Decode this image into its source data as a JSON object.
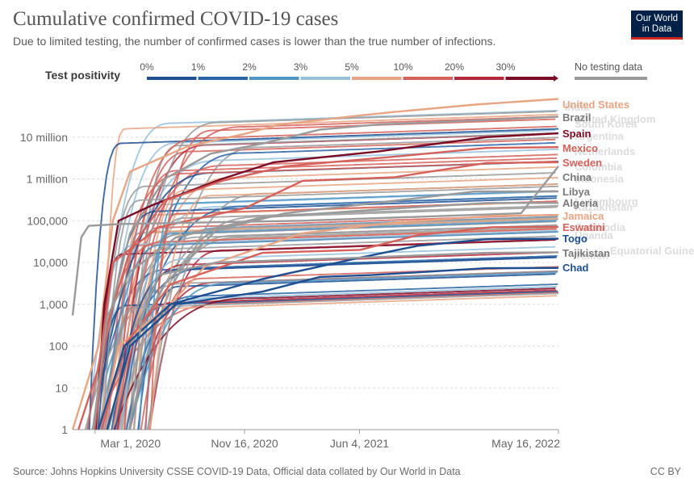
{
  "header": {
    "title": "Cumulative confirmed COVID-19 cases",
    "subtitle": "Due to limited testing, the number of confirmed cases is lower than the true number of infections.",
    "logo_line1": "Our World",
    "logo_line2": "in Data"
  },
  "footer": {
    "source": "Source: Johns Hopkins University CSSE COVID-19 Data, Official data collated by Our World in Data",
    "license": "CC BY"
  },
  "legend": {
    "title": "Test positivity",
    "bins": [
      {
        "label": "0%",
        "color": "#1d4f91"
      },
      {
        "label": "1%",
        "color": "#2b64a6"
      },
      {
        "label": "2%",
        "color": "#4f95c6"
      },
      {
        "label": "3%",
        "color": "#95c1dd"
      },
      {
        "label": "5%",
        "color": "#e8a583"
      },
      {
        "label": "10%",
        "color": "#d5615a"
      },
      {
        "label": "20%",
        "color": "#b5283c"
      },
      {
        "label": "30%",
        "color": "#7b0b26"
      }
    ],
    "no_data_label": "No testing data",
    "no_data_color": "#9a9a9a"
  },
  "chart_data": {
    "type": "line",
    "title": "Cumulative confirmed COVID-19 cases",
    "y_scale": "log",
    "ylim": [
      1,
      100000000
    ],
    "x_range": [
      "2020-01-22",
      "2022-05-16"
    ],
    "x_ticks": [
      {
        "label": "Mar 1, 2020",
        "day": 39
      },
      {
        "label": "Nov 16, 2020",
        "day": 299
      },
      {
        "label": "Jun 4, 2021",
        "day": 499
      },
      {
        "label": "May 16, 2022",
        "day": 845
      }
    ],
    "y_ticks": [
      {
        "label": "1",
        "value": 1
      },
      {
        "label": "10",
        "value": 10
      },
      {
        "label": "100",
        "value": 100
      },
      {
        "label": "1,000",
        "value": 1000
      },
      {
        "label": "10,000",
        "value": 10000
      },
      {
        "label": "100,000",
        "value": 100000
      },
      {
        "label": "1 million",
        "value": 1000000
      },
      {
        "label": "10 million",
        "value": 10000000
      }
    ],
    "series": [
      {
        "name": "United States",
        "color": "#e8a583",
        "start": 0,
        "pts": [
          [
            0,
            1
          ],
          [
            45,
            100
          ],
          [
            70,
            100000
          ],
          [
            100,
            1500000
          ],
          [
            200,
            6000000
          ],
          [
            300,
            12000000
          ],
          [
            360,
            20000000
          ],
          [
            500,
            33000000
          ],
          [
            560,
            40000000
          ],
          [
            700,
            60000000
          ],
          [
            845,
            82000000
          ]
        ]
      },
      {
        "name": "Brazil",
        "color": "#9a9a9a",
        "start": 30,
        "pts": [
          [
            35,
            1
          ],
          [
            60,
            300
          ],
          [
            100,
            50000
          ],
          [
            160,
            1000000
          ],
          [
            240,
            4000000
          ],
          [
            330,
            7000000
          ],
          [
            430,
            15000000
          ],
          [
            530,
            20000000
          ],
          [
            700,
            25000000
          ],
          [
            845,
            30700000
          ]
        ]
      },
      {
        "name": "Spain",
        "color": "#7b0b26",
        "start": 30,
        "pts": [
          [
            40,
            1
          ],
          [
            55,
            1000
          ],
          [
            80,
            100000
          ],
          [
            140,
            240000
          ],
          [
            260,
            1000000
          ],
          [
            350,
            2500000
          ],
          [
            530,
            4500000
          ],
          [
            720,
            10000000
          ],
          [
            845,
            12300000
          ]
        ]
      },
      {
        "name": "Mexico",
        "color": "#d5615a",
        "start": 35,
        "pts": [
          [
            38,
            1
          ],
          [
            60,
            300
          ],
          [
            100,
            20000
          ],
          [
            160,
            300000
          ],
          [
            260,
            900000
          ],
          [
            370,
            2000000
          ],
          [
            570,
            3500000
          ],
          [
            720,
            5500000
          ],
          [
            845,
            5750000
          ]
        ]
      },
      {
        "name": "Sweden",
        "color": "#d5615a",
        "start": 8,
        "pts": [
          [
            10,
            1
          ],
          [
            45,
            30
          ],
          [
            70,
            10000
          ],
          [
            150,
            70000
          ],
          [
            300,
            200000
          ],
          [
            400,
            900000
          ],
          [
            560,
            1100000
          ],
          [
            720,
            2400000
          ],
          [
            845,
            2500000
          ]
        ]
      },
      {
        "name": "China",
        "color": "#9a9a9a",
        "start": 0,
        "pts": [
          [
            0,
            540
          ],
          [
            15,
            40000
          ],
          [
            28,
            75000
          ],
          [
            80,
            83000
          ],
          [
            400,
            100000
          ],
          [
            780,
            150000
          ],
          [
            845,
            2000000
          ]
        ]
      },
      {
        "name": "Libya",
        "color": "#9a9a9a",
        "start": 60,
        "pts": [
          [
            62,
            1
          ],
          [
            100,
            100
          ],
          [
            160,
            3000
          ],
          [
            250,
            60000
          ],
          [
            370,
            150000
          ],
          [
            560,
            300000
          ],
          [
            700,
            500000
          ],
          [
            845,
            502000
          ]
        ]
      },
      {
        "name": "Algeria",
        "color": "#9a9a9a",
        "start": 35,
        "pts": [
          [
            36,
            1
          ],
          [
            60,
            500
          ],
          [
            100,
            6000
          ],
          [
            180,
            40000
          ],
          [
            330,
            120000
          ],
          [
            520,
            180000
          ],
          [
            720,
            265000
          ],
          [
            845,
            266000
          ]
        ]
      },
      {
        "name": "Jamaica",
        "color": "#e8a583",
        "start": 50,
        "pts": [
          [
            50,
            1
          ],
          [
            80,
            100
          ],
          [
            170,
            1000
          ],
          [
            230,
            8000
          ],
          [
            400,
            50000
          ],
          [
            560,
            90000
          ],
          [
            730,
            130000
          ],
          [
            845,
            137000
          ]
        ]
      },
      {
        "name": "Eswatini",
        "color": "#d5615a",
        "start": 50,
        "pts": [
          [
            50,
            1
          ],
          [
            90,
            100
          ],
          [
            170,
            3000
          ],
          [
            330,
            17000
          ],
          [
            500,
            20000
          ],
          [
            600,
            45000
          ],
          [
            730,
            70000
          ],
          [
            845,
            71000
          ]
        ]
      },
      {
        "name": "Togo",
        "color": "#1d4f91",
        "start": 45,
        "pts": [
          [
            45,
            1
          ],
          [
            90,
            100
          ],
          [
            170,
            1000
          ],
          [
            330,
            4000
          ],
          [
            500,
            13000
          ],
          [
            600,
            25000
          ],
          [
            720,
            36000
          ],
          [
            845,
            37000
          ]
        ]
      },
      {
        "name": "Tajikistan",
        "color": "#9a9a9a",
        "start": 100,
        "pts": [
          [
            100,
            1
          ],
          [
            120,
            500
          ],
          [
            150,
            5000
          ],
          [
            250,
            10000
          ],
          [
            500,
            13000
          ],
          [
            720,
            17000
          ],
          [
            845,
            17500
          ]
        ]
      },
      {
        "name": "Chad",
        "color": "#1d4f91",
        "start": 60,
        "pts": [
          [
            60,
            1
          ],
          [
            100,
            100
          ],
          [
            180,
            1000
          ],
          [
            330,
            2000
          ],
          [
            430,
            4500
          ],
          [
            520,
            5000
          ],
          [
            720,
            7300
          ],
          [
            845,
            7400
          ]
        ]
      }
    ],
    "ghost_labels": [
      "India",
      "United Kingdom",
      "South Korea",
      "Argentina",
      "Netherlands",
      "Colombia",
      "Indonesia",
      "Luxembourg",
      "Kazakhstan",
      "Cambodia",
      "Uganda",
      "Equatorial Guinea",
      "Yemen"
    ]
  }
}
